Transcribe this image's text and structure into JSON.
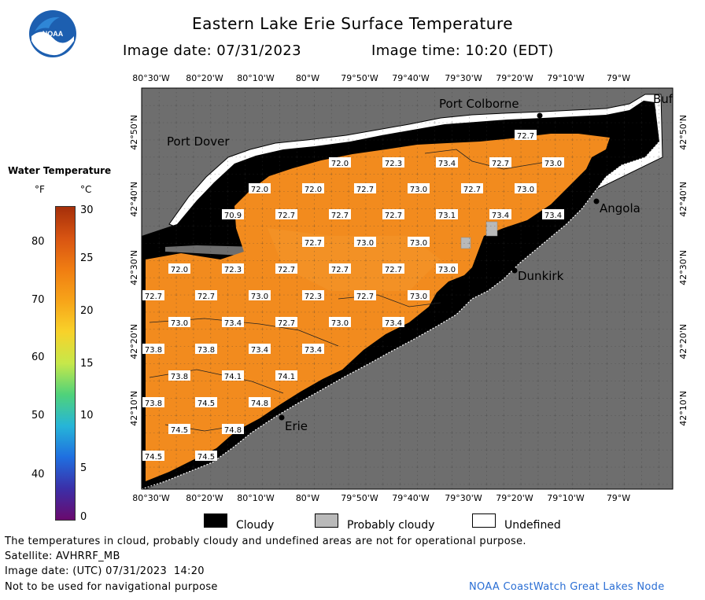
{
  "header": {
    "title": "Eastern Lake Erie Surface Temperature",
    "image_date": "Image date: 07/31/2023",
    "image_time": "Image time: 10:20 (EDT)"
  },
  "logo": {
    "text": "NOAA"
  },
  "axes": {
    "longitudes": [
      "80°30'W",
      "80°20'W",
      "80°10'W",
      "80°W",
      "79°50'W",
      "79°40'W",
      "79°30'W",
      "79°20'W",
      "79°10'W",
      "79°W"
    ],
    "latitudes": [
      "42°50'N",
      "42°40'N",
      "42°30'N",
      "42°20'N",
      "42°10'N"
    ]
  },
  "places": {
    "port_colborne": "Port Colborne",
    "port_dover": "Port Dover",
    "angola": "Angola",
    "dunkirk": "Dunkirk",
    "erie": "Erie",
    "buffalo": "Buf"
  },
  "temperatures": [
    "72.7",
    "72.0",
    "72.3",
    "73.4",
    "72.7",
    "73.0",
    "72.0",
    "72.0",
    "72.7",
    "73.0",
    "72.7",
    "73.0",
    "70.9",
    "72.7",
    "72.7",
    "72.7",
    "73.1",
    "73.4",
    "73.4",
    "72.7",
    "73.0",
    "73.0",
    "72.0",
    "72.3",
    "72.7",
    "72.7",
    "72.7",
    "73.0",
    "72.7",
    "72.7",
    "73.0",
    "72.3",
    "72.7",
    "73.0",
    "73.0",
    "73.4",
    "72.7",
    "73.0",
    "73.4",
    "73.8",
    "73.8",
    "73.4",
    "73.4",
    "73.8",
    "74.1",
    "74.1",
    "73.8",
    "74.5",
    "74.8",
    "74.5",
    "74.8",
    "74.5",
    "74.5"
  ],
  "legend": {
    "title": "Water Temperature",
    "unit_f": "°F",
    "unit_c": "°C",
    "f_ticks": [
      "80",
      "70",
      "60",
      "50",
      "40"
    ],
    "c_ticks": [
      "30",
      "25",
      "20",
      "15",
      "10",
      "5",
      "0"
    ],
    "colors": [
      "#6a0a6e",
      "#3b2fa8",
      "#1f6fe0",
      "#26b5d8",
      "#4fd27a",
      "#c6e84a",
      "#f8d22a",
      "#f7a419",
      "#f07d12",
      "#d85412",
      "#a52f0a"
    ]
  },
  "key": {
    "cloudy": "Cloudy",
    "probably_cloudy": "Probably cloudy",
    "undefined": "Undefined",
    "colors": {
      "land": "#6e6e6e",
      "water": "#f28b1e",
      "cloud": "#000000",
      "probably": "#b9b9b9",
      "undefined": "#ffffff"
    }
  },
  "footer": {
    "note": "The temperatures in cloud, probably cloudy and undefined areas are not for operational purpose.",
    "satellite": "Satellite: AVHRRF_MB",
    "utc": "Image date: (UTC) 07/31/2023  14:20",
    "nav": "Not to be used for navigational purpose",
    "credit": "NOAA CoastWatch Great Lakes Node"
  }
}
